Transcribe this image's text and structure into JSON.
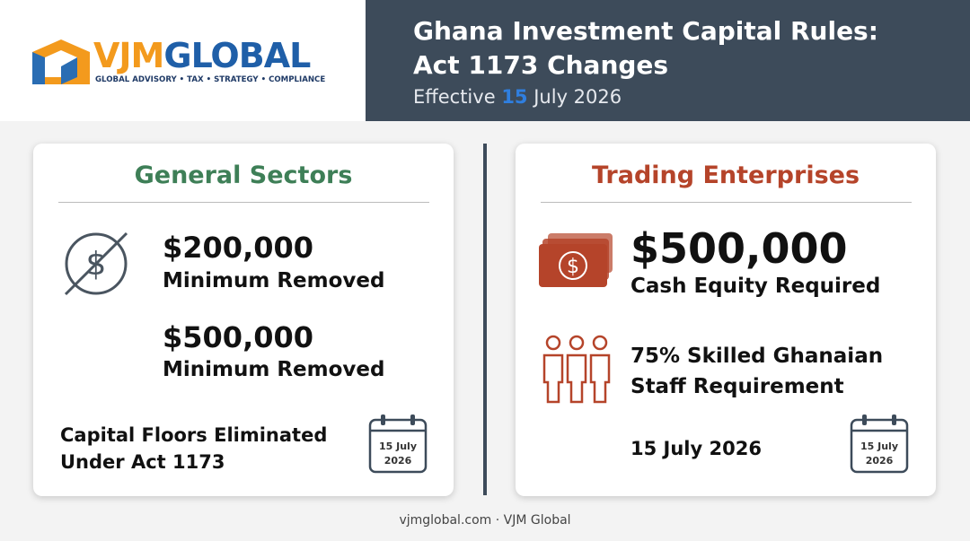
{
  "header": {
    "brand_a": "VJM",
    "brand_b": "GLOBAL",
    "tagline": "GLOBAL ADVISORY • TAX • STRATEGY • COMPLIANCE",
    "title_lines": [
      "Ghana Investment Capital Rules:",
      "Act 1173 Changes"
    ],
    "subtitle_prefix": "Effective",
    "subtitle_highlight": "15",
    "subtitle_suffix": "July 2026"
  },
  "left_card": {
    "title": "General Sectors",
    "items": [
      {
        "amount": "$200,000",
        "note": "Minimum Removed"
      },
      {
        "amount": "$500,000",
        "note": "Minimum Removed"
      }
    ],
    "footer_lines": [
      "Capital Floors Eliminated",
      "Under Act 1173"
    ],
    "calendar": [
      "15 July",
      "2026"
    ]
  },
  "right_card": {
    "title": "Trading Enterprises",
    "amount": "$500,000",
    "amount_note": "Cash Equity Required",
    "staff_lines": [
      "75% Skilled Ghanaian",
      "Staff Requirement"
    ],
    "date": "15 July 2026",
    "calendar": [
      "15 July",
      "2026"
    ]
  },
  "footer": "vjmglobal.com · VJM Global"
}
